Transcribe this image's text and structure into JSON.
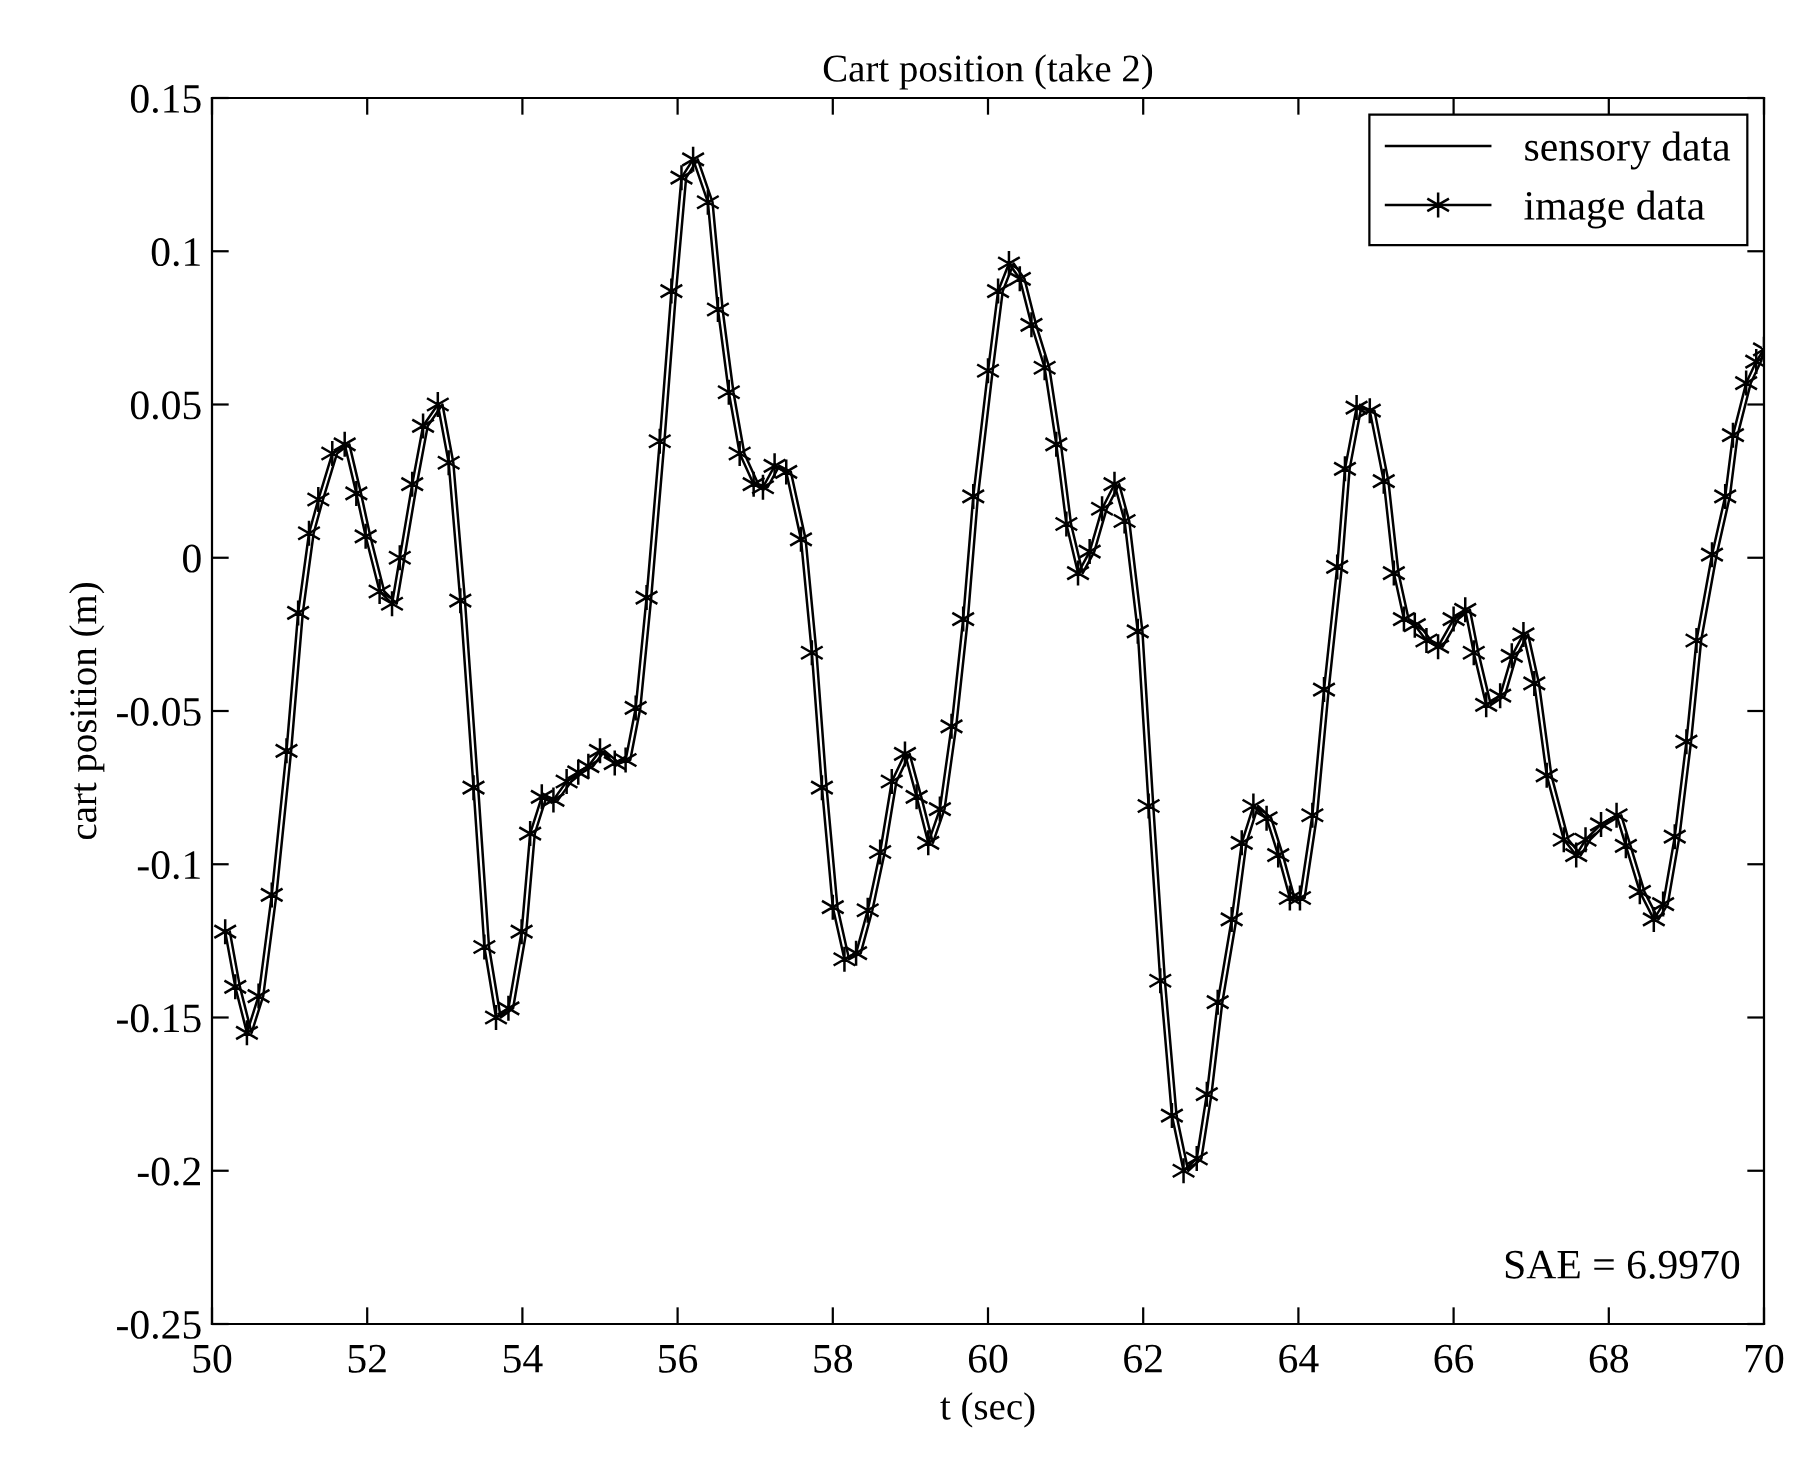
{
  "chart_data": {
    "type": "line",
    "title": "Cart position (take 2)",
    "xlabel": "t (sec)",
    "ylabel": "cart position (m)",
    "xlim": [
      50,
      70
    ],
    "xticks": [
      50,
      52,
      54,
      56,
      58,
      60,
      62,
      64,
      66,
      68,
      70
    ],
    "ylim": [
      -0.25,
      0.15
    ],
    "yticks": [
      -0.25,
      -0.2,
      -0.15,
      -0.1,
      -0.05,
      0,
      0.05,
      0.1,
      0.15
    ],
    "grid": false,
    "legend": "top right",
    "annotations": [
      "SAE = 6.9970"
    ],
    "series": [
      {
        "name": "sensory data",
        "color": "#000000",
        "marker": "none",
        "x": [
          50.23,
          50.36,
          50.51,
          50.66,
          50.83,
          51.02,
          51.17,
          51.31,
          51.43,
          51.61,
          51.77,
          51.92,
          52.04,
          52.22,
          52.38,
          52.48,
          52.64,
          52.78,
          52.97,
          53.11,
          53.26,
          53.43,
          53.57,
          53.72,
          53.88,
          54.05,
          54.16,
          54.31,
          54.46,
          54.63,
          54.78,
          54.91,
          55.06,
          55.25,
          55.39,
          55.52,
          55.66,
          55.83,
          55.98,
          56.11,
          56.26,
          56.45,
          56.58,
          56.72,
          56.86,
          57.04,
          57.16,
          57.31,
          57.46,
          57.65,
          57.79,
          57.92,
          58.06,
          58.21,
          58.36,
          58.51,
          58.67,
          58.82,
          58.99,
          59.14,
          59.29,
          59.44,
          59.59,
          59.74,
          59.87,
          60.06,
          60.19,
          60.33,
          60.47,
          60.62,
          60.79,
          60.94,
          61.07,
          61.22,
          61.37,
          61.53,
          61.69,
          61.82,
          61.99,
          62.13,
          62.28,
          62.43,
          62.58,
          62.75,
          62.88,
          63.02,
          63.2,
          63.33,
          63.48,
          63.65,
          63.8,
          63.95,
          64.08,
          64.24,
          64.39,
          64.56,
          64.66,
          64.81,
          64.98,
          65.16,
          65.29,
          65.42,
          65.56,
          65.71,
          65.86,
          66.06,
          66.21,
          66.32,
          66.48,
          66.66,
          66.81,
          66.96,
          67.1,
          67.26,
          67.48,
          67.64,
          67.76,
          67.96,
          68.16,
          68.28,
          68.46,
          68.64,
          68.76,
          68.91,
          69.06,
          69.19,
          69.39,
          69.56,
          69.66,
          69.83,
          69.96,
          70.0
        ],
        "values": [
          -0.122,
          -0.14,
          -0.155,
          -0.143,
          -0.11,
          -0.063,
          -0.018,
          0.008,
          0.019,
          0.034,
          0.037,
          0.021,
          0.007,
          -0.011,
          -0.015,
          0.0,
          0.024,
          0.043,
          0.05,
          0.031,
          -0.014,
          -0.075,
          -0.127,
          -0.15,
          -0.147,
          -0.122,
          -0.09,
          -0.078,
          -0.079,
          -0.073,
          -0.07,
          -0.068,
          -0.063,
          -0.067,
          -0.066,
          -0.049,
          -0.013,
          0.038,
          0.087,
          0.124,
          0.13,
          0.116,
          0.081,
          0.054,
          0.034,
          0.024,
          0.023,
          0.03,
          0.028,
          0.006,
          -0.031,
          -0.075,
          -0.114,
          -0.131,
          -0.129,
          -0.115,
          -0.096,
          -0.073,
          -0.064,
          -0.078,
          -0.093,
          -0.082,
          -0.055,
          -0.02,
          0.02,
          0.061,
          0.087,
          0.096,
          0.091,
          0.076,
          0.062,
          0.037,
          0.011,
          -0.005,
          0.002,
          0.016,
          0.024,
          0.012,
          -0.024,
          -0.081,
          -0.138,
          -0.182,
          -0.2,
          -0.196,
          -0.175,
          -0.145,
          -0.118,
          -0.093,
          -0.081,
          -0.085,
          -0.097,
          -0.111,
          -0.111,
          -0.084,
          -0.043,
          -0.003,
          0.029,
          0.049,
          0.048,
          0.025,
          -0.005,
          -0.02,
          -0.022,
          -0.027,
          -0.029,
          -0.02,
          -0.017,
          -0.031,
          -0.048,
          -0.045,
          -0.032,
          -0.025,
          -0.041,
          -0.071,
          -0.092,
          -0.097,
          -0.092,
          -0.087,
          -0.084,
          -0.094,
          -0.109,
          -0.118,
          -0.113,
          -0.091,
          -0.06,
          -0.027,
          0.001,
          0.02,
          0.04,
          0.057,
          0.064,
          0.068
        ]
      },
      {
        "name": "image data",
        "color": "#000000",
        "marker": "cross",
        "x": [
          50.17,
          50.3,
          50.45,
          50.6,
          50.77,
          50.96,
          51.11,
          51.25,
          51.37,
          51.55,
          51.71,
          51.86,
          51.98,
          52.16,
          52.32,
          52.42,
          52.58,
          52.72,
          52.91,
          53.05,
          53.2,
          53.37,
          53.51,
          53.66,
          53.82,
          53.99,
          54.1,
          54.25,
          54.4,
          54.57,
          54.72,
          54.85,
          55.0,
          55.19,
          55.33,
          55.46,
          55.6,
          55.77,
          55.92,
          56.05,
          56.2,
          56.39,
          56.52,
          56.66,
          56.8,
          56.98,
          57.1,
          57.25,
          57.4,
          57.59,
          57.73,
          57.86,
          58.0,
          58.15,
          58.3,
          58.45,
          58.61,
          58.76,
          58.93,
          59.08,
          59.23,
          59.38,
          59.53,
          59.68,
          59.81,
          60.0,
          60.13,
          60.27,
          60.41,
          60.56,
          60.73,
          60.88,
          61.01,
          61.16,
          61.31,
          61.47,
          61.63,
          61.76,
          61.93,
          62.07,
          62.22,
          62.37,
          62.52,
          62.69,
          62.82,
          62.96,
          63.14,
          63.27,
          63.42,
          63.59,
          63.74,
          63.89,
          64.02,
          64.18,
          64.33,
          64.5,
          64.6,
          64.75,
          64.92,
          65.1,
          65.23,
          65.36,
          65.5,
          65.65,
          65.8,
          66.0,
          66.15,
          66.26,
          66.42,
          66.6,
          66.75,
          66.9,
          67.04,
          67.2,
          67.42,
          67.58,
          67.7,
          67.9,
          68.1,
          68.22,
          68.4,
          68.58,
          68.7,
          68.85,
          69.0,
          69.13,
          69.33,
          69.5,
          69.6,
          69.77,
          69.9,
          70.0
        ],
        "values": [
          -0.122,
          -0.14,
          -0.155,
          -0.143,
          -0.11,
          -0.063,
          -0.018,
          0.008,
          0.019,
          0.034,
          0.037,
          0.021,
          0.007,
          -0.011,
          -0.015,
          0.0,
          0.024,
          0.043,
          0.05,
          0.031,
          -0.014,
          -0.075,
          -0.127,
          -0.15,
          -0.147,
          -0.122,
          -0.09,
          -0.078,
          -0.079,
          -0.073,
          -0.07,
          -0.068,
          -0.063,
          -0.067,
          -0.066,
          -0.049,
          -0.013,
          0.038,
          0.087,
          0.124,
          0.13,
          0.116,
          0.081,
          0.054,
          0.034,
          0.024,
          0.023,
          0.03,
          0.028,
          0.006,
          -0.031,
          -0.075,
          -0.114,
          -0.131,
          -0.129,
          -0.115,
          -0.096,
          -0.073,
          -0.064,
          -0.078,
          -0.093,
          -0.082,
          -0.055,
          -0.02,
          0.02,
          0.061,
          0.087,
          0.096,
          0.091,
          0.076,
          0.062,
          0.037,
          0.011,
          -0.005,
          0.002,
          0.016,
          0.024,
          0.012,
          -0.024,
          -0.081,
          -0.138,
          -0.182,
          -0.2,
          -0.196,
          -0.175,
          -0.145,
          -0.118,
          -0.093,
          -0.081,
          -0.085,
          -0.097,
          -0.111,
          -0.111,
          -0.084,
          -0.043,
          -0.003,
          0.029,
          0.049,
          0.048,
          0.025,
          -0.005,
          -0.02,
          -0.022,
          -0.027,
          -0.029,
          -0.02,
          -0.017,
          -0.031,
          -0.048,
          -0.045,
          -0.032,
          -0.025,
          -0.041,
          -0.071,
          -0.092,
          -0.097,
          -0.092,
          -0.087,
          -0.084,
          -0.094,
          -0.109,
          -0.118,
          -0.113,
          -0.091,
          -0.06,
          -0.027,
          0.001,
          0.02,
          0.04,
          0.057,
          0.064,
          0.068
        ]
      }
    ]
  }
}
